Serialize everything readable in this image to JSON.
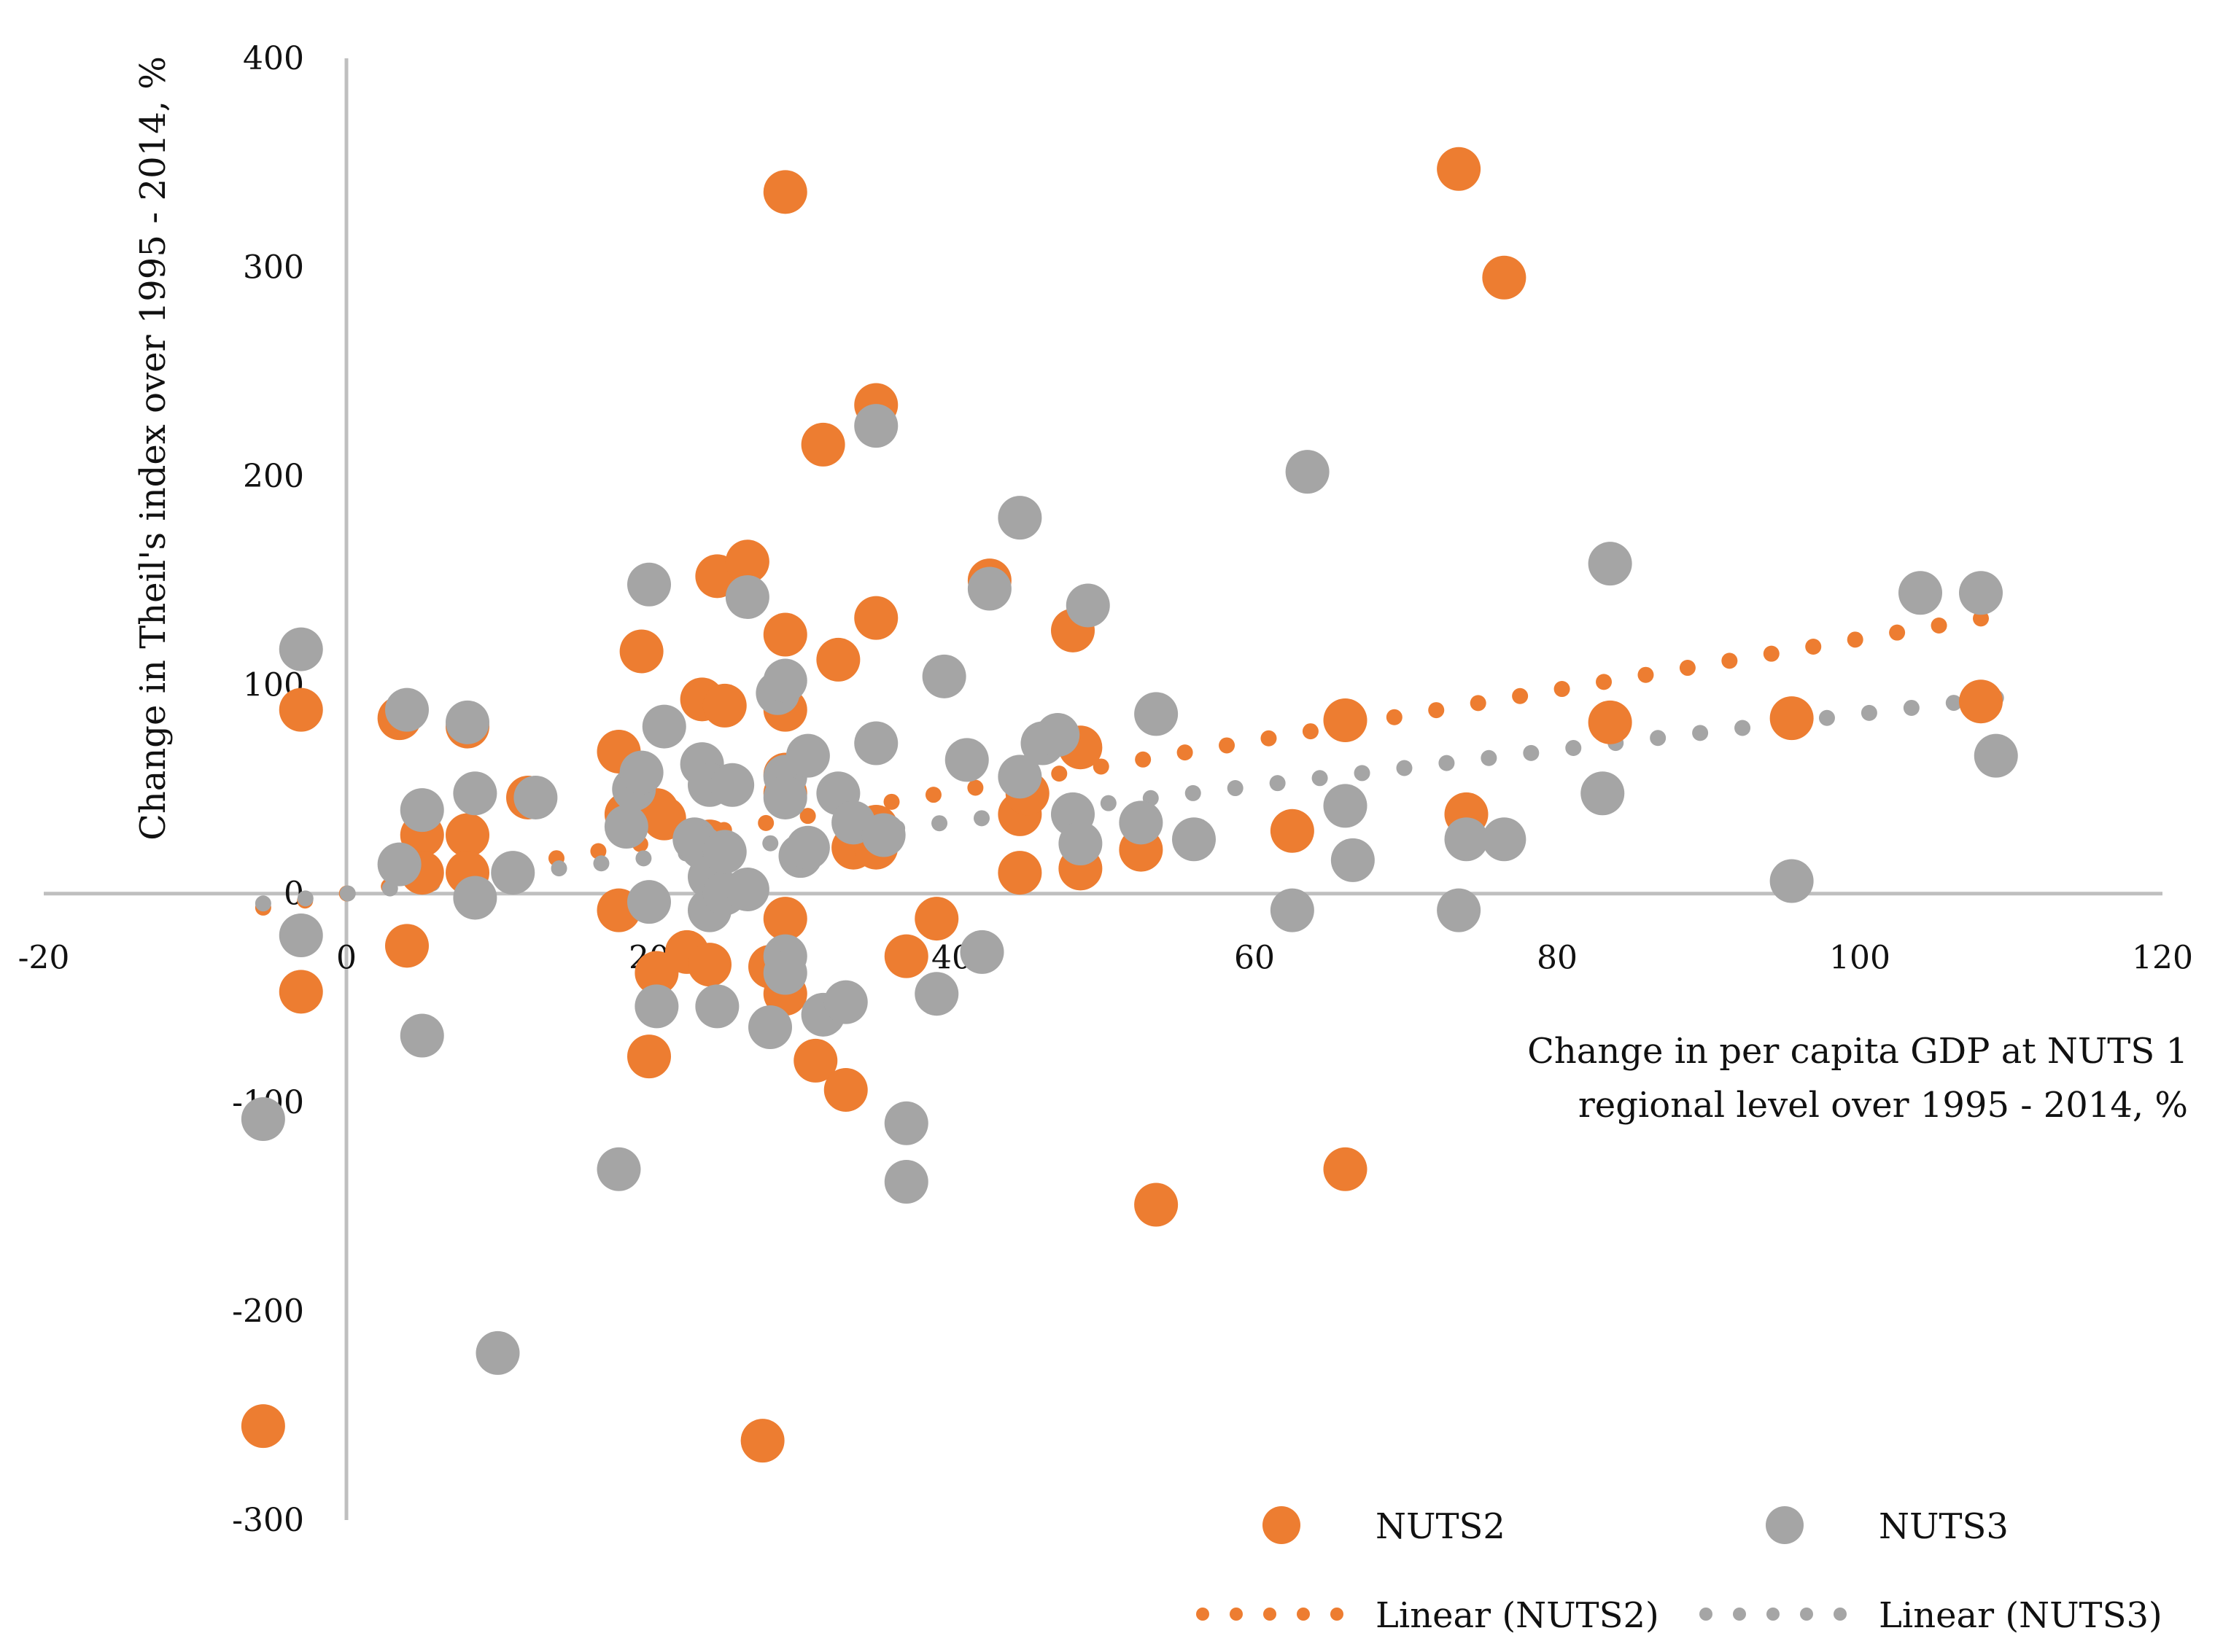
{
  "chart_data": {
    "type": "scatter",
    "title": "",
    "xlabel_lines": [
      "Change in per capita GDP at NUTS 1",
      "regional  level over 1995 - 2014, %"
    ],
    "ylabel": "Change in Theil's index over 1995 - 2014, %",
    "xlim": [
      -20,
      120
    ],
    "ylim": [
      -300,
      400
    ],
    "x_ticks": [
      -20,
      0,
      20,
      40,
      60,
      80,
      100,
      120
    ],
    "y_ticks": [
      -300,
      -200,
      -100,
      0,
      100,
      200,
      300,
      400
    ],
    "x_tick_labels": [
      "-20",
      "0",
      "20",
      "40",
      "60",
      "80",
      "100",
      "120"
    ],
    "y_tick_labels": [
      "-300",
      "-200",
      "-100",
      "0",
      "100",
      "200",
      "300",
      "400"
    ],
    "legend": {
      "position": "bottom-right",
      "entries": [
        "NUTS2",
        "NUTS3",
        "Linear (NUTS2)",
        "Linear (NUTS3)"
      ]
    },
    "series": [
      {
        "name": "NUTS2",
        "color": "#ED7D31",
        "points": [
          [
            -3,
            88
          ],
          [
            -3,
            -47
          ],
          [
            3.5,
            84
          ],
          [
            4,
            -25
          ],
          [
            5,
            28
          ],
          [
            5,
            10
          ],
          [
            8,
            80
          ],
          [
            8,
            28
          ],
          [
            8,
            10
          ],
          [
            12,
            46
          ],
          [
            18,
            68
          ],
          [
            18,
            -8
          ],
          [
            18.5,
            38
          ],
          [
            19.5,
            116
          ],
          [
            20,
            -78
          ],
          [
            20.5,
            40
          ],
          [
            20.5,
            -38
          ],
          [
            21,
            36
          ],
          [
            22.5,
            -28
          ],
          [
            23.5,
            93
          ],
          [
            24,
            -34
          ],
          [
            24,
            25
          ],
          [
            24.5,
            152
          ],
          [
            25,
            90
          ],
          [
            26.5,
            159
          ],
          [
            27.5,
            -262
          ],
          [
            28,
            -35
          ],
          [
            29,
            336
          ],
          [
            29,
            124
          ],
          [
            29,
            88
          ],
          [
            29,
            57
          ],
          [
            29,
            48
          ],
          [
            29,
            -48
          ],
          [
            29,
            -12
          ],
          [
            31,
            -80
          ],
          [
            31.5,
            215
          ],
          [
            32.5,
            112
          ],
          [
            33,
            -94
          ],
          [
            33.5,
            22
          ],
          [
            35,
            22
          ],
          [
            35,
            234
          ],
          [
            35,
            132
          ],
          [
            35,
            32
          ],
          [
            37,
            -30
          ],
          [
            39,
            -12
          ],
          [
            42.5,
            150
          ],
          [
            44.5,
            10
          ],
          [
            44.5,
            38
          ],
          [
            45,
            48
          ],
          [
            48,
            126
          ],
          [
            48.5,
            12
          ],
          [
            48.5,
            70
          ],
          [
            52.5,
            21
          ],
          [
            53.5,
            -149
          ],
          [
            62.5,
            30
          ],
          [
            66,
            83
          ],
          [
            66,
            -132
          ],
          [
            73.5,
            347
          ],
          [
            74,
            38
          ],
          [
            76.5,
            295
          ],
          [
            83.5,
            82
          ],
          [
            95.5,
            84
          ],
          [
            108,
            92
          ],
          [
            -5.5,
            -255
          ]
        ]
      },
      {
        "name": "NUTS3",
        "color": "#A5A5A5",
        "points": [
          [
            -3,
            117
          ],
          [
            -3,
            -20
          ],
          [
            -5.5,
            -108
          ],
          [
            3.5,
            14
          ],
          [
            4,
            88
          ],
          [
            5,
            -68
          ],
          [
            5,
            40
          ],
          [
            8,
            82
          ],
          [
            8.5,
            48
          ],
          [
            8.5,
            -2
          ],
          [
            10,
            -220
          ],
          [
            11,
            10
          ],
          [
            12.5,
            46
          ],
          [
            18,
            -132
          ],
          [
            18.5,
            32
          ],
          [
            19,
            50
          ],
          [
            19.5,
            58
          ],
          [
            20,
            -4
          ],
          [
            20,
            148
          ],
          [
            20.5,
            -54
          ],
          [
            21,
            80
          ],
          [
            23,
            26
          ],
          [
            23.5,
            62
          ],
          [
            23.5,
            22
          ],
          [
            24,
            52
          ],
          [
            24,
            8
          ],
          [
            24,
            -8
          ],
          [
            24.5,
            -54
          ],
          [
            25,
            0
          ],
          [
            25,
            20
          ],
          [
            25.5,
            52
          ],
          [
            26.5,
            2
          ],
          [
            26.5,
            142
          ],
          [
            28,
            -64
          ],
          [
            28.5,
            96
          ],
          [
            29,
            102
          ],
          [
            29,
            56
          ],
          [
            29,
            46
          ],
          [
            29,
            -30
          ],
          [
            29,
            -38
          ],
          [
            30,
            18
          ],
          [
            30.5,
            22
          ],
          [
            30.5,
            66
          ],
          [
            31.5,
            -58
          ],
          [
            32.5,
            48
          ],
          [
            33,
            -52
          ],
          [
            33.5,
            34
          ],
          [
            35,
            72
          ],
          [
            35,
            224
          ],
          [
            35.5,
            28
          ],
          [
            37,
            -110
          ],
          [
            37,
            -138
          ],
          [
            39,
            -48
          ],
          [
            39.5,
            104
          ],
          [
            41,
            64
          ],
          [
            42,
            -28
          ],
          [
            42.5,
            146
          ],
          [
            44.5,
            180
          ],
          [
            44.5,
            56
          ],
          [
            46,
            72
          ],
          [
            47,
            76
          ],
          [
            48,
            38
          ],
          [
            48.5,
            24
          ],
          [
            49,
            138
          ],
          [
            52.5,
            34
          ],
          [
            53.5,
            86
          ],
          [
            56,
            26
          ],
          [
            62.5,
            -8
          ],
          [
            63.5,
            202
          ],
          [
            66,
            42
          ],
          [
            66.5,
            16
          ],
          [
            73.5,
            -8
          ],
          [
            74,
            26
          ],
          [
            76.5,
            26
          ],
          [
            83,
            48
          ],
          [
            83.5,
            158
          ],
          [
            95.5,
            6
          ],
          [
            104,
            144
          ],
          [
            108,
            144
          ],
          [
            109,
            66
          ]
        ]
      }
    ],
    "trendlines": [
      {
        "name": "Linear (NUTS2)",
        "color": "#ED7D31",
        "x_range": [
          -5.5,
          108
        ],
        "slope": 1.22,
        "intercept": 0
      },
      {
        "name": "Linear (NUTS3)",
        "color": "#A5A5A5",
        "x_range": [
          -5.5,
          109
        ],
        "slope": 0.86,
        "intercept": 0
      }
    ]
  }
}
